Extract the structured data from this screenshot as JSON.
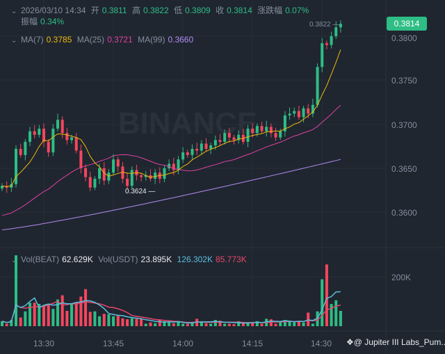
{
  "header": {
    "datetime": "2026/03/10 14:34",
    "open_label": "开",
    "open": "0.3811",
    "high_label": "高",
    "high": "0.3822",
    "low_label": "低",
    "low": "0.3809",
    "close_label": "收",
    "close": "0.3814",
    "change_label": "涨跌幅",
    "change": "0.07%",
    "amplitude_label": "振幅",
    "amplitude": "0.34%"
  },
  "ma": {
    "ma7_label": "MA(7)",
    "ma7": "0.3785",
    "ma25_label": "MA(25)",
    "ma25": "0.3721",
    "ma99_label": "MA(99)",
    "ma99": "0.3660"
  },
  "volume": {
    "vol_beat_label": "Vol(BEAT)",
    "vol_beat": "62.629K",
    "vol_usdt_label": "Vol(USDT)",
    "vol_usdt": "23.895K",
    "ma_a": "126.302K",
    "ma_b": "85.773K"
  },
  "price_axis": [
    "0.3800",
    "0.3750",
    "0.3700",
    "0.3650",
    "0.3600"
  ],
  "volume_axis": [
    "200K"
  ],
  "time_axis": [
    "13:30",
    "13:45",
    "14:00",
    "14:15",
    "14:30"
  ],
  "last_price": "0.3814",
  "high_marker": "0.3822",
  "low_marker": "0.3624",
  "watermark_logo": "BINANCE",
  "footer_watermark": "@ Jupiter III Labs_Pum...",
  "colors": {
    "up": "#2ebd85",
    "down": "#f6465d",
    "ma7": "#f0b90b",
    "ma25": "#e040a0",
    "ma99": "#b38cf0",
    "vol_ma_a": "#5bc0de",
    "vol_ma_b": "#e6476a"
  },
  "chart_data": {
    "type": "candlestick",
    "start_time": "13:21",
    "interval": "1m",
    "closes": [
      0.363,
      0.3628,
      0.3632,
      0.3672,
      0.3665,
      0.368,
      0.3692,
      0.3688,
      0.3695,
      0.368,
      0.3668,
      0.3695,
      0.3705,
      0.369,
      0.3682,
      0.3685,
      0.367,
      0.365,
      0.364,
      0.3628,
      0.3638,
      0.365,
      0.3636,
      0.3645,
      0.366,
      0.3652,
      0.3638,
      0.363,
      0.3648,
      0.3642,
      0.364,
      0.3642,
      0.3638,
      0.3645,
      0.3638,
      0.365,
      0.3655,
      0.3648,
      0.366,
      0.3668,
      0.3665,
      0.3672,
      0.367,
      0.3678,
      0.3672,
      0.3676,
      0.3682,
      0.368,
      0.369,
      0.3685,
      0.3682,
      0.3688,
      0.368,
      0.3695,
      0.369,
      0.3698,
      0.3692,
      0.3697,
      0.369,
      0.3685,
      0.3692,
      0.371,
      0.3712,
      0.3715,
      0.3708,
      0.3718,
      0.3712,
      0.3722,
      0.3765,
      0.3792,
      0.379,
      0.38,
      0.381,
      0.3814
    ],
    "volumes_k": [
      20,
      10,
      25,
      287,
      35,
      60,
      95,
      95,
      90,
      82,
      88,
      70,
      108,
      125,
      62,
      90,
      95,
      120,
      150,
      58,
      60,
      40,
      50,
      48,
      40,
      42,
      32,
      28,
      32,
      30,
      30,
      10,
      15,
      12,
      25,
      20,
      15,
      12,
      20,
      10,
      10,
      15,
      30,
      20,
      12,
      10,
      25,
      22,
      10,
      10,
      8,
      20,
      15,
      12,
      15,
      20,
      10,
      30,
      28,
      10,
      18,
      25,
      20,
      15,
      20,
      15,
      55,
      10,
      60,
      190,
      250,
      90,
      105,
      62
    ],
    "ma99_range": [
      0.358,
      0.366
    ],
    "price_range": [
      0.3575,
      0.3825
    ],
    "volume_range_k": [
      0,
      290
    ]
  }
}
